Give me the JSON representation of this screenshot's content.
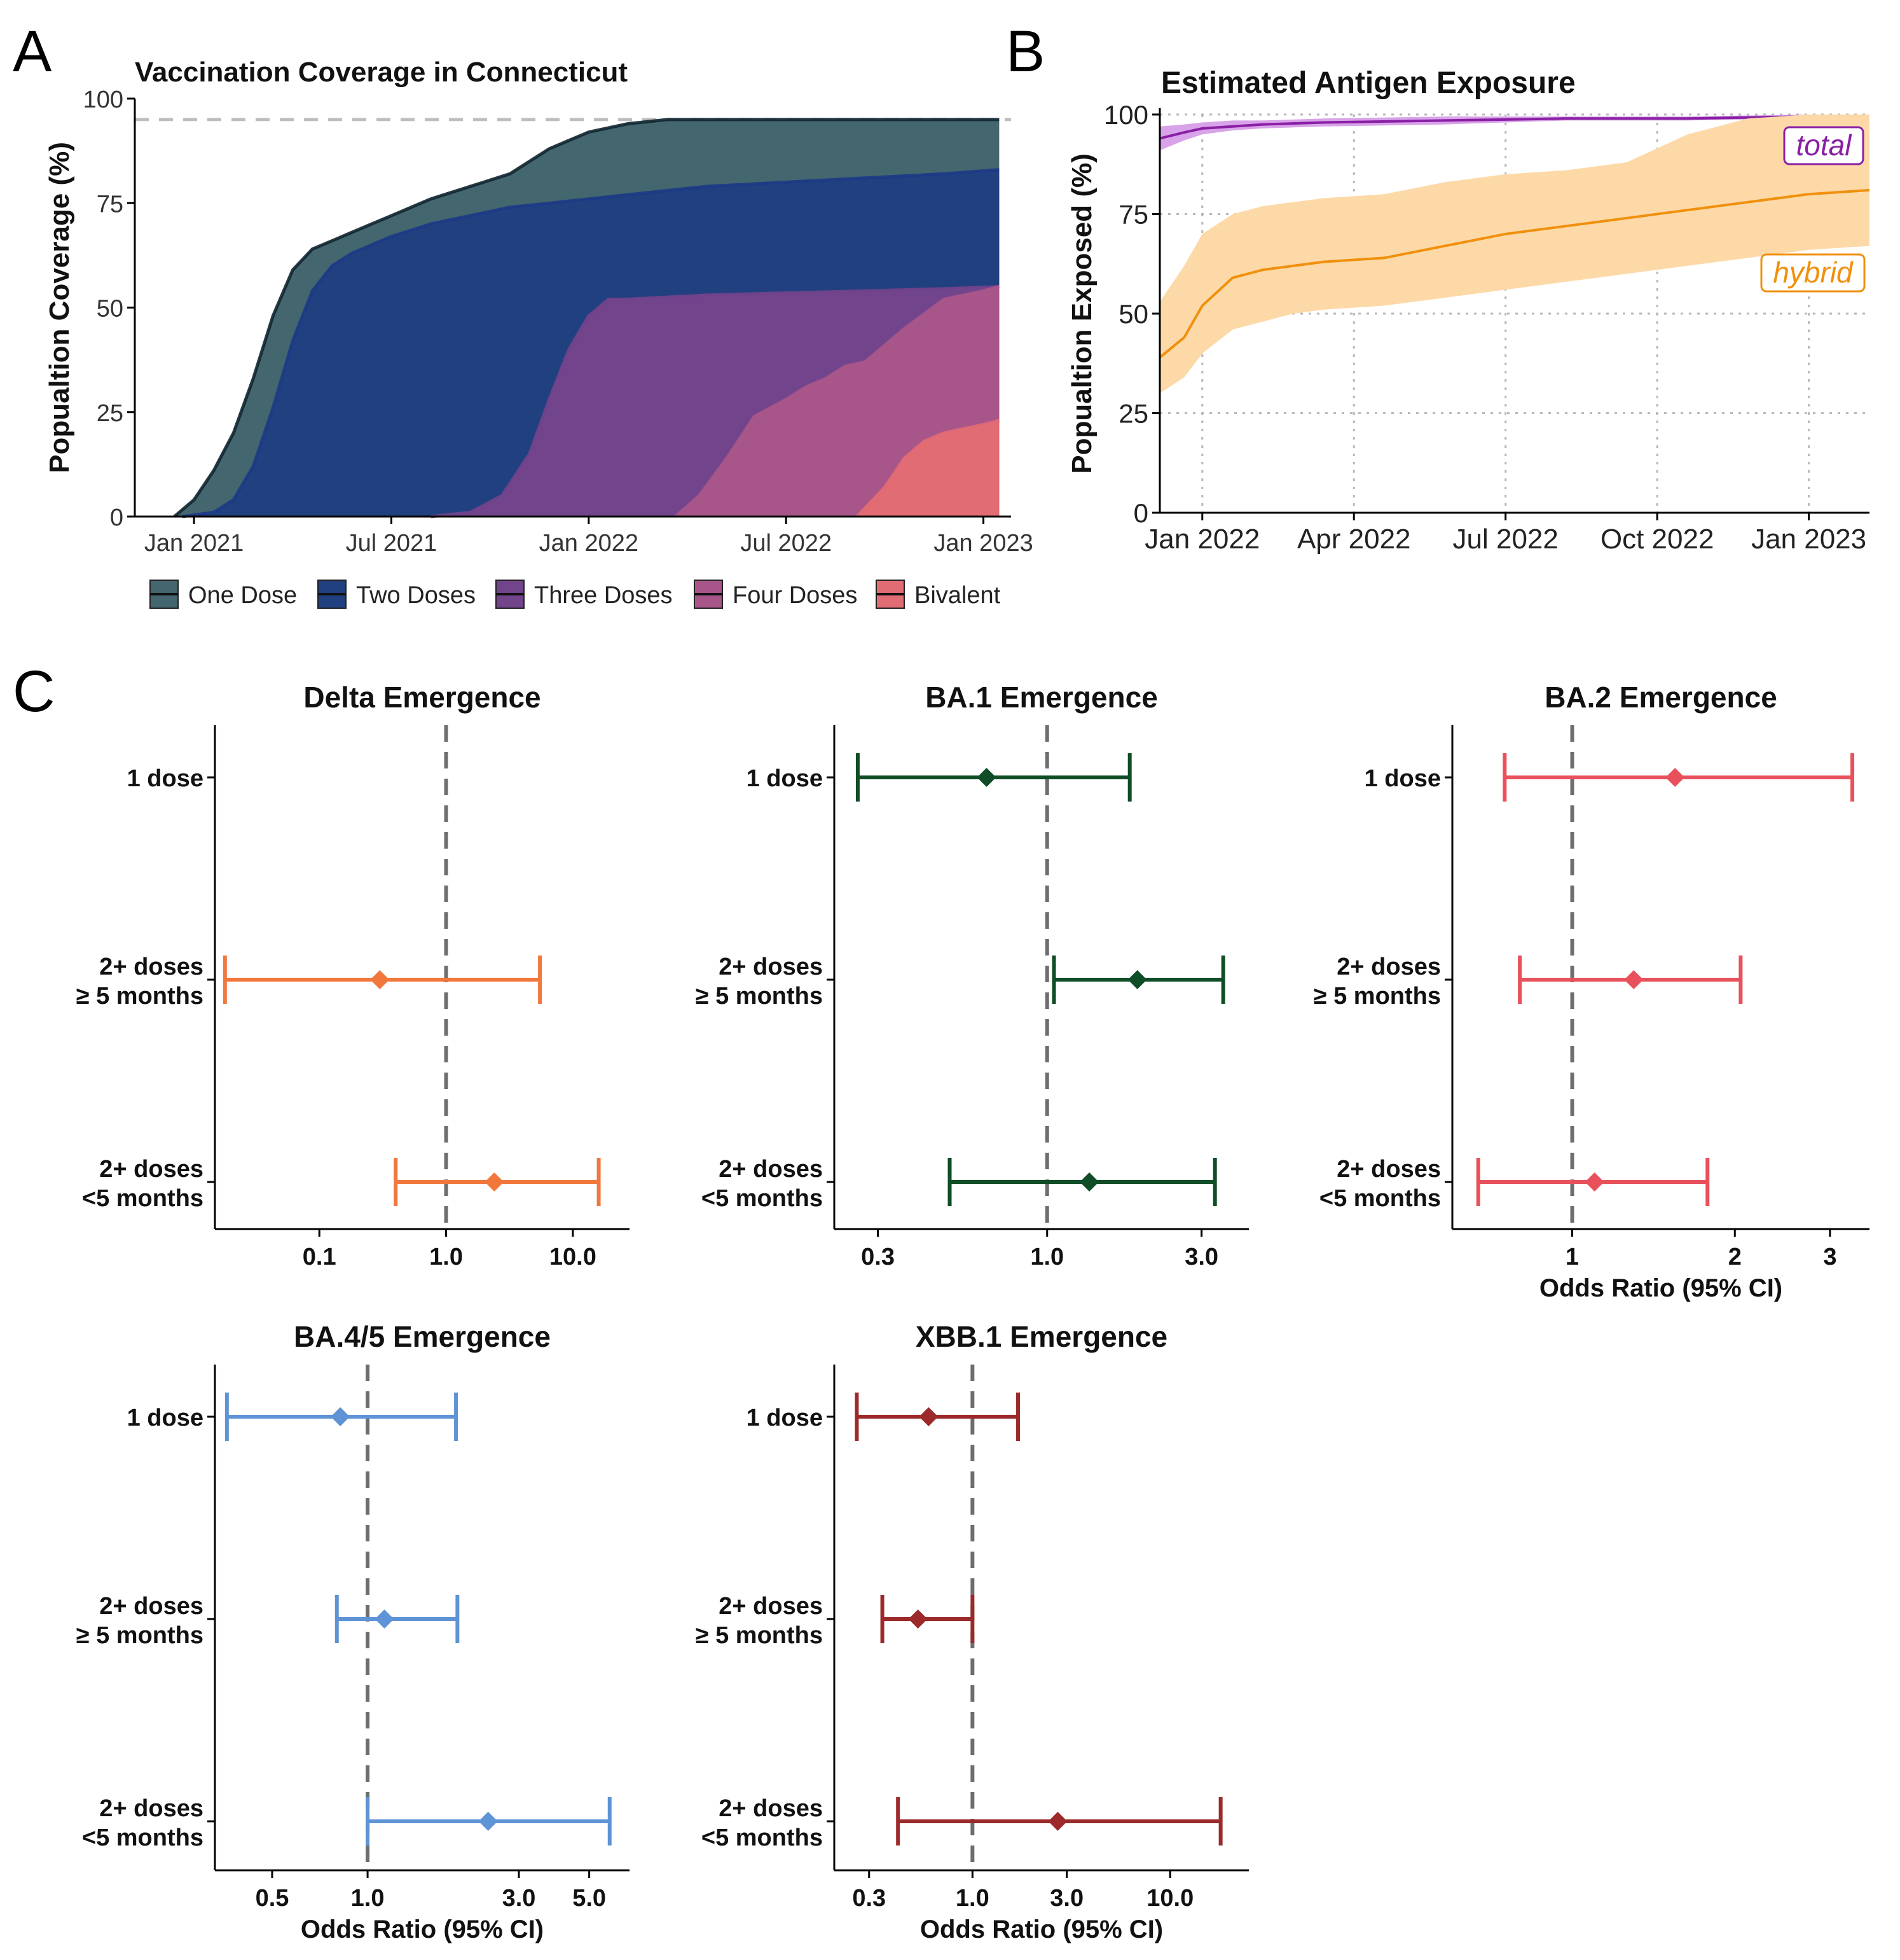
{
  "panel_labels": {
    "a": "A",
    "b": "B",
    "c": "C"
  },
  "chart_data": [
    {
      "id": "A",
      "type": "area",
      "title": "Vaccination Coverage in Connecticut",
      "xlabel": "",
      "ylabel": "Popualtion Coverage (%)",
      "ylim": [
        0,
        100
      ],
      "xlim": [
        2020.85,
        2023.07
      ],
      "x_ticks": [
        {
          "x": 2021.0,
          "label": "Jan 2021"
        },
        {
          "x": 2021.5,
          "label": "Jul 2021"
        },
        {
          "x": 2022.0,
          "label": "Jan 2022"
        },
        {
          "x": 2022.5,
          "label": "Jul 2022"
        },
        {
          "x": 2023.0,
          "label": "Jan 2023"
        }
      ],
      "y_ticks": [
        0,
        25,
        50,
        75,
        100
      ],
      "reference_line": 95,
      "legend": [
        "One Dose",
        "Two Doses",
        "Three Doses",
        "Four Doses",
        "Bivalent"
      ],
      "colors": {
        "One Dose": "#44666e",
        "Two Doses": "#21407f",
        "Three Doses": "#72448c",
        "Four Doses": "#a8568a",
        "Bivalent": "#e26c74"
      },
      "series": [
        {
          "name": "One Dose",
          "x": [
            2020.95,
            2021.0,
            2021.05,
            2021.1,
            2021.15,
            2021.2,
            2021.25,
            2021.3,
            2021.35,
            2021.4,
            2021.45,
            2021.5,
            2021.6,
            2021.7,
            2021.8,
            2021.9,
            2022.0,
            2022.1,
            2022.2,
            2022.3,
            2022.5,
            2022.7,
            2022.9,
            2023.04
          ],
          "values": [
            0,
            4,
            11,
            20,
            33,
            48,
            59,
            64,
            66,
            68,
            70,
            72,
            76,
            79,
            82,
            88,
            92,
            94,
            95,
            95,
            95,
            95,
            95,
            95
          ]
        },
        {
          "name": "Two Doses",
          "x": [
            2020.97,
            2021.05,
            2021.1,
            2021.15,
            2021.2,
            2021.25,
            2021.3,
            2021.35,
            2021.4,
            2021.45,
            2021.5,
            2021.6,
            2021.7,
            2021.8,
            2021.9,
            2022.0,
            2022.1,
            2022.2,
            2022.3,
            2022.5,
            2022.7,
            2022.9,
            2023.04
          ],
          "values": [
            0,
            1,
            4,
            12,
            26,
            42,
            54,
            60,
            63,
            65,
            67,
            70,
            72,
            74,
            75,
            76,
            77,
            78,
            79,
            80,
            81,
            82,
            83
          ]
        },
        {
          "name": "Three Doses",
          "x": [
            2021.6,
            2021.7,
            2021.78,
            2021.85,
            2021.9,
            2021.95,
            2022.0,
            2022.05,
            2022.1,
            2022.2,
            2022.3,
            2022.5,
            2022.7,
            2022.9,
            2023.04
          ],
          "values": [
            0,
            1,
            5,
            15,
            28,
            40,
            48,
            52,
            52,
            52.5,
            53,
            53.5,
            54,
            54.5,
            55
          ]
        },
        {
          "name": "Four Doses",
          "x": [
            2022.22,
            2022.28,
            2022.35,
            2022.42,
            2022.5,
            2022.55,
            2022.6,
            2022.65,
            2022.7,
            2022.8,
            2022.9,
            2023.0,
            2023.04
          ],
          "values": [
            0,
            5,
            14,
            24,
            28,
            31,
            33,
            36,
            37,
            45,
            52,
            54,
            55
          ]
        },
        {
          "name": "Bivalent",
          "x": [
            2022.68,
            2022.75,
            2022.8,
            2022.85,
            2022.9,
            2022.95,
            2023.0,
            2023.04
          ],
          "values": [
            0,
            7,
            14,
            18,
            20,
            21,
            22,
            23
          ]
        }
      ]
    },
    {
      "id": "B",
      "type": "line",
      "title": "Estimated Antigen Exposure",
      "xlabel": "",
      "ylabel": "Popualtion Exposed (%)",
      "ylim": [
        0,
        100
      ],
      "xlim": [
        2021.93,
        2023.1
      ],
      "x_ticks": [
        {
          "x": 2022.0,
          "label": "Jan 2022"
        },
        {
          "x": 2022.25,
          "label": "Apr 2022"
        },
        {
          "x": 2022.5,
          "label": "Jul 2022"
        },
        {
          "x": 2022.75,
          "label": "Oct 2022"
        },
        {
          "x": 2023.0,
          "label": "Jan 2023"
        }
      ],
      "y_ticks": [
        0,
        25,
        50,
        75,
        100
      ],
      "grid": true,
      "series": [
        {
          "name": "total",
          "color": "#8a1fa5",
          "band_color": "#d8a3e8",
          "x": [
            2021.93,
            2021.97,
            2022.0,
            2022.05,
            2022.1,
            2022.2,
            2022.4,
            2022.6,
            2022.8,
            2023.0,
            2023.1
          ],
          "values": [
            94,
            95.5,
            96.5,
            97,
            97.5,
            98,
            98.5,
            99,
            99,
            99.5,
            99.5
          ],
          "lower": [
            91,
            93.5,
            95,
            96,
            96.5,
            97,
            97.5,
            98.5,
            98.5,
            99,
            99
          ],
          "upper": [
            97,
            97.5,
            98,
            98.5,
            98.5,
            99,
            99.5,
            99.5,
            99.5,
            100,
            100
          ]
        },
        {
          "name": "hybrid",
          "color": "#f0900c",
          "band_color": "#fdd9a8",
          "x": [
            2021.93,
            2021.97,
            2022.0,
            2022.05,
            2022.1,
            2022.15,
            2022.2,
            2022.3,
            2022.4,
            2022.5,
            2022.6,
            2022.7,
            2022.8,
            2022.9,
            2023.0,
            2023.1
          ],
          "values": [
            39,
            44,
            52,
            59,
            61,
            62,
            63,
            64,
            67,
            70,
            72,
            74,
            76,
            78,
            80,
            81
          ],
          "lower": [
            30,
            34,
            40,
            46,
            48,
            50,
            51,
            52,
            54,
            56,
            58,
            60,
            62,
            64,
            66,
            67
          ],
          "upper": [
            53,
            62,
            70,
            75,
            77,
            78,
            79,
            80,
            83,
            85,
            86,
            88,
            95,
            99,
            100,
            100
          ]
        }
      ],
      "annotations": [
        {
          "text": "total",
          "series": "total"
        },
        {
          "text": "hybrid",
          "series": "hybrid"
        }
      ]
    },
    {
      "id": "C-delta",
      "type": "scatter",
      "scale": "log",
      "title": "Delta Emergence",
      "xlabel": "",
      "color": "#f2773d",
      "xlim": [
        0.015,
        28
      ],
      "x_ticks": [
        0.1,
        1.0,
        10.0
      ],
      "x_tick_labels": [
        "0.1",
        "1.0",
        "10.0"
      ],
      "categories": [
        "1 dose",
        "2+ doses\n≥ 5 months",
        "2+ doses\n<5 months"
      ],
      "or": [
        null,
        0.3,
        2.4
      ],
      "lower": [
        null,
        0.018,
        0.4
      ],
      "upper": [
        null,
        5.5,
        16
      ]
    },
    {
      "id": "C-ba1",
      "type": "scatter",
      "scale": "log",
      "title": "BA.1 Emergence",
      "xlabel": "",
      "color": "#0f4d27",
      "xlim": [
        0.22,
        4.2
      ],
      "x_ticks": [
        0.3,
        1.0,
        3.0
      ],
      "x_tick_labels": [
        "0.3",
        "1.0",
        "3.0"
      ],
      "categories": [
        "1 dose",
        "2+ doses\n≥ 5 months",
        "2+ doses\n<5 months"
      ],
      "or": [
        0.65,
        1.9,
        1.35
      ],
      "lower": [
        0.26,
        1.05,
        0.5
      ],
      "upper": [
        1.8,
        3.5,
        3.3
      ]
    },
    {
      "id": "C-ba2",
      "type": "scatter",
      "scale": "log",
      "title": "BA.2 Emergence",
      "xlabel": "Odds Ratio (95% CI)",
      "color": "#e8515b",
      "xlim": [
        0.6,
        3.55
      ],
      "x_ticks": [
        1,
        2,
        3
      ],
      "x_tick_labels": [
        "1",
        "2",
        "3"
      ],
      "categories": [
        "1 dose",
        "2+ doses\n≥ 5 months",
        "2+ doses\n<5 months"
      ],
      "or": [
        1.55,
        1.3,
        1.1
      ],
      "lower": [
        0.75,
        0.8,
        0.67
      ],
      "upper": [
        3.3,
        2.05,
        1.78
      ]
    },
    {
      "id": "C-ba45",
      "type": "scatter",
      "scale": "log",
      "title": "BA.4/5 Emergence",
      "xlabel": "Odds Ratio (95% CI)",
      "color": "#5e93d6",
      "xlim": [
        0.33,
        6.7
      ],
      "x_ticks": [
        0.5,
        1.0,
        3.0,
        5.0
      ],
      "x_tick_labels": [
        "0.5",
        "1.0",
        "3.0",
        "5.0"
      ],
      "categories": [
        "1 dose",
        "2+ doses\n≥ 5 months",
        "2+ doses\n<5 months"
      ],
      "or": [
        0.82,
        1.13,
        2.4
      ],
      "lower": [
        0.36,
        0.8,
        1.0
      ],
      "upper": [
        1.9,
        1.92,
        5.8
      ]
    },
    {
      "id": "C-xbb1",
      "type": "scatter",
      "scale": "log",
      "title": "XBB.1 Emergence",
      "xlabel": "Odds Ratio (95% CI)",
      "color": "#9c2a2a",
      "xlim": [
        0.2,
        25
      ],
      "x_ticks": [
        0.3,
        1.0,
        3.0,
        10.0
      ],
      "x_tick_labels": [
        "0.3",
        "1.0",
        "3.0",
        "10.0"
      ],
      "categories": [
        "1 dose",
        "2+ doses\n≥ 5 months",
        "2+ doses\n<5 months"
      ],
      "or": [
        0.6,
        0.53,
        2.7
      ],
      "lower": [
        0.26,
        0.35,
        0.42
      ],
      "upper": [
        1.7,
        1.0,
        18
      ]
    }
  ]
}
